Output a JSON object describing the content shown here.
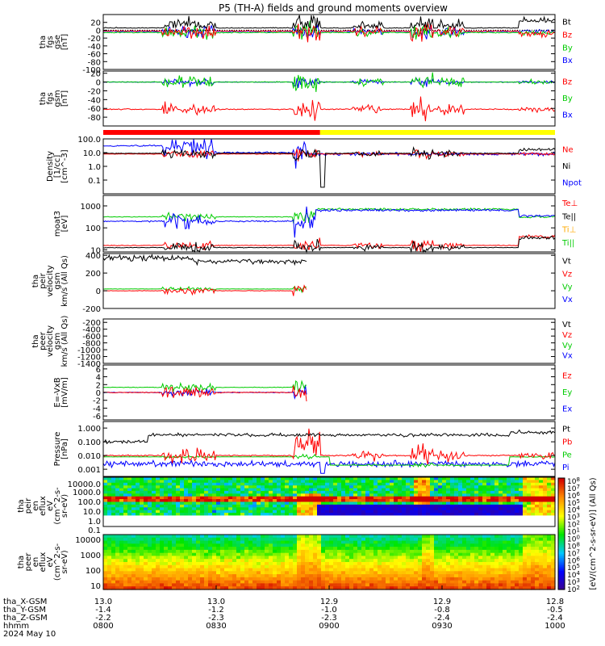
{
  "title": "P5 (TH-A) fields and ground moments overview",
  "colors": {
    "black": "#000000",
    "red": "#ff0000",
    "green": "#00cc00",
    "blue": "#0000ff",
    "yellow": "#ffff00"
  },
  "chart_data": [
    {
      "id": "bgse",
      "type": "line",
      "ylabel": [
        "tha",
        "fgs",
        "gse",
        "[nT]"
      ],
      "ylim": [
        -100,
        40
      ],
      "ticks": [
        "20",
        "0",
        "-20",
        "-40",
        "-60",
        "-80",
        "-100"
      ],
      "legend": [
        {
          "name": "Bt",
          "color": "#000000"
        },
        {
          "name": "Bz",
          "color": "#ff0000"
        },
        {
          "name": "By",
          "color": "#00cc00"
        },
        {
          "name": "Bx",
          "color": "#0000ff"
        }
      ]
    },
    {
      "id": "bgsm",
      "type": "line",
      "ylabel": [
        "tha",
        "fgs",
        "gsm",
        "[nT]"
      ],
      "ylim": [
        -100,
        25
      ],
      "ticks": [
        "20",
        "0",
        "-20",
        "-40",
        "-60",
        "-80"
      ],
      "legend": [
        {
          "name": "Bz",
          "color": "#ff0000"
        },
        {
          "name": "By",
          "color": "#00cc00"
        },
        {
          "name": "Bx",
          "color": "#0000ff"
        }
      ]
    },
    {
      "id": "density",
      "type": "line",
      "log": true,
      "ylabel": [
        "Density",
        "[1/cc]",
        "[cm^-3]"
      ],
      "ylim": [
        0.01,
        100
      ],
      "ticks": [
        "100.0",
        "10.0",
        "1.0",
        "0.1"
      ],
      "legend": [
        {
          "name": "Ne",
          "color": "#ff0000"
        },
        {
          "name": "Ni",
          "color": "#000000"
        },
        {
          "name": "Npot",
          "color": "#0000ff"
        }
      ]
    },
    {
      "id": "temp",
      "type": "line",
      "log": true,
      "ylabel": [
        "moat3",
        "[eV]"
      ],
      "ylim": [
        8,
        3000
      ],
      "ticks": [
        "1000",
        "100",
        "10"
      ],
      "legend": [
        {
          "name": "Te⊥",
          "color": "#ff0000"
        },
        {
          "name": "Te||",
          "color": "#000000"
        },
        {
          "name": "Ti⊥",
          "color": "#ffaa00"
        },
        {
          "name": "Ti||",
          "color": "#00cc00"
        }
      ]
    },
    {
      "id": "vpeir",
      "type": "line",
      "ylabel": [
        "tha",
        "peir",
        "velocity",
        "gsm",
        "km/s (All Qs)"
      ],
      "ylim": [
        -200,
        420
      ],
      "ticks": [
        "400",
        "200",
        "0",
        "-200"
      ],
      "legend": [
        {
          "name": "Vt",
          "color": "#000000"
        },
        {
          "name": "Vz",
          "color": "#ff0000"
        },
        {
          "name": "Vy",
          "color": "#00cc00"
        },
        {
          "name": "Vx",
          "color": "#0000ff"
        }
      ]
    },
    {
      "id": "vpeer",
      "type": "line",
      "ylabel": [
        "tha",
        "peer",
        "velocity",
        "gsm",
        "km/s (All Qs)"
      ],
      "ylim": [
        -1400,
        -100
      ],
      "ticks": [
        "-200",
        "-400",
        "-600",
        "-800",
        "-1000",
        "-1200",
        "-1400"
      ],
      "legend": [
        {
          "name": "Vt",
          "color": "#000000"
        },
        {
          "name": "Vz",
          "color": "#ff0000"
        },
        {
          "name": "Vy",
          "color": "#00cc00"
        },
        {
          "name": "Vx",
          "color": "#0000ff"
        }
      ]
    },
    {
      "id": "efield",
      "type": "line",
      "ylabel": [
        "E=-VxB",
        "[mV/m]"
      ],
      "ylim": [
        -7,
        7
      ],
      "ticks": [
        "6",
        "4",
        "2",
        "0",
        "-2",
        "-4",
        "-6"
      ],
      "legend": [
        {
          "name": "Ez",
          "color": "#ff0000"
        },
        {
          "name": "Ey",
          "color": "#00cc00"
        },
        {
          "name": "Ex",
          "color": "#0000ff"
        }
      ]
    },
    {
      "id": "pressure",
      "type": "line",
      "log": true,
      "ylabel": [
        "Pressure",
        "[nPa]"
      ],
      "ylim": [
        0.0003,
        3
      ],
      "ticks": [
        "1.000",
        "0.100",
        "0.010",
        "0.001"
      ],
      "legend": [
        {
          "name": "Pt",
          "color": "#000000"
        },
        {
          "name": "Pb",
          "color": "#ff0000"
        },
        {
          "name": "Pe",
          "color": "#00cc00"
        },
        {
          "name": "Pi",
          "color": "#0000ff"
        }
      ]
    },
    {
      "id": "peir_spec",
      "type": "heatmap",
      "ylabel": [
        "tha",
        "peir",
        "en",
        "eflux",
        "eV",
        "(cm^2-s-",
        "sr-eV)"
      ],
      "ticks": [
        "10000.0",
        "1000.0",
        "100.0",
        "10.0",
        "1.0",
        "0.1"
      ]
    },
    {
      "id": "peer_spec",
      "type": "heatmap",
      "ylabel": [
        "tha",
        "peer",
        "en",
        "eflux",
        "eV",
        "(cm^2-s-",
        "sr-eV)"
      ],
      "ticks": [
        "10000",
        "1000",
        "100",
        "10"
      ]
    }
  ],
  "colorbar": {
    "ticks": [
      "10^8",
      "10^7",
      "10^6",
      "10^5",
      "10^4",
      "10^3",
      "10^2",
      "10^1",
      "10^0",
      "10^8",
      "10^7",
      "10^6",
      "10^5",
      "10^4",
      "10^3",
      "10^2"
    ],
    "label": "[eV/(cm^2-s-sr-eV)] (All Qs)"
  },
  "mode_bar": [
    {
      "from": 0,
      "to": 0.48,
      "color": "#ff0000"
    },
    {
      "from": 0.48,
      "to": 1,
      "color": "#ffff00"
    }
  ],
  "xaxis": {
    "row_labels": [
      "tha_X-GSM",
      "tha_Y-GSM",
      "tha_Z-GSM",
      "hhmm",
      "2024 May 10"
    ],
    "ticks": [
      {
        "x": "13.0",
        "y": "-1.4",
        "z": "-2.2",
        "t": "0800"
      },
      {
        "x": "13.0",
        "y": "-1.2",
        "z": "-2.3",
        "t": "0830"
      },
      {
        "x": "12.9",
        "y": "-1.0",
        "z": "-2.3",
        "t": "0900"
      },
      {
        "x": "12.9",
        "y": "-0.8",
        "z": "-2.4",
        "t": "0930"
      },
      {
        "x": "12.8",
        "y": "-0.5",
        "z": "-2.4",
        "t": "1000"
      }
    ]
  }
}
